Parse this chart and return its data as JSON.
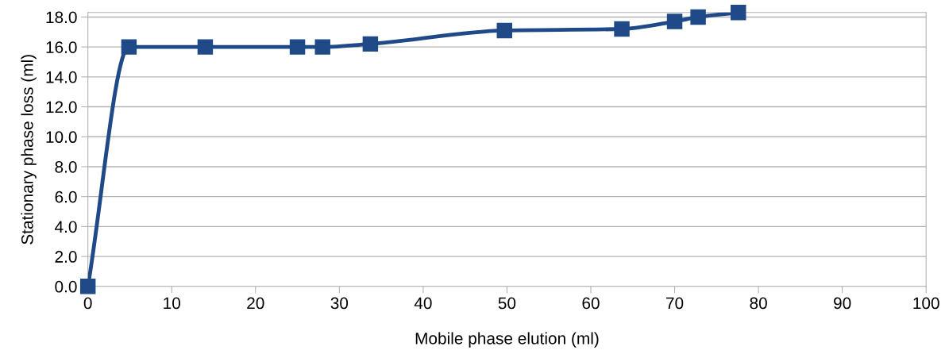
{
  "chart_data": {
    "type": "line",
    "xlabel": "Mobile phase elution (ml)",
    "ylabel": "Stationary phase loss (ml)",
    "x": [
      0,
      4.9,
      14.0,
      25.0,
      28.0,
      33.7,
      49.7,
      63.7,
      70.0,
      72.8,
      77.6
    ],
    "series": [
      {
        "color": "#1f4a87",
        "values": [
          0.0,
          16.0,
          16.0,
          16.0,
          16.0,
          16.2,
          17.1,
          17.2,
          17.7,
          18.0,
          18.3
        ]
      }
    ],
    "xlim": [
      0,
      100
    ],
    "xticks": [
      0,
      10,
      20,
      30,
      40,
      50,
      60,
      70,
      80,
      90,
      100
    ],
    "ylim": [
      0,
      18.3
    ],
    "yticks": [
      {
        "value": 0,
        "label": "0.0"
      },
      {
        "value": 2,
        "label": "2.0"
      },
      {
        "value": 4,
        "label": "4.0"
      },
      {
        "value": 6,
        "label": "6.0"
      },
      {
        "value": 8,
        "label": "8.0"
      },
      {
        "value": 10,
        "label": "10.0"
      },
      {
        "value": 12,
        "label": "12.0"
      },
      {
        "value": 14,
        "label": "14.0"
      },
      {
        "value": 16,
        "label": "16.0"
      },
      {
        "value": 18,
        "label": "18.0"
      }
    ],
    "grid": "y",
    "marker": "square",
    "line_style": "solid"
  }
}
